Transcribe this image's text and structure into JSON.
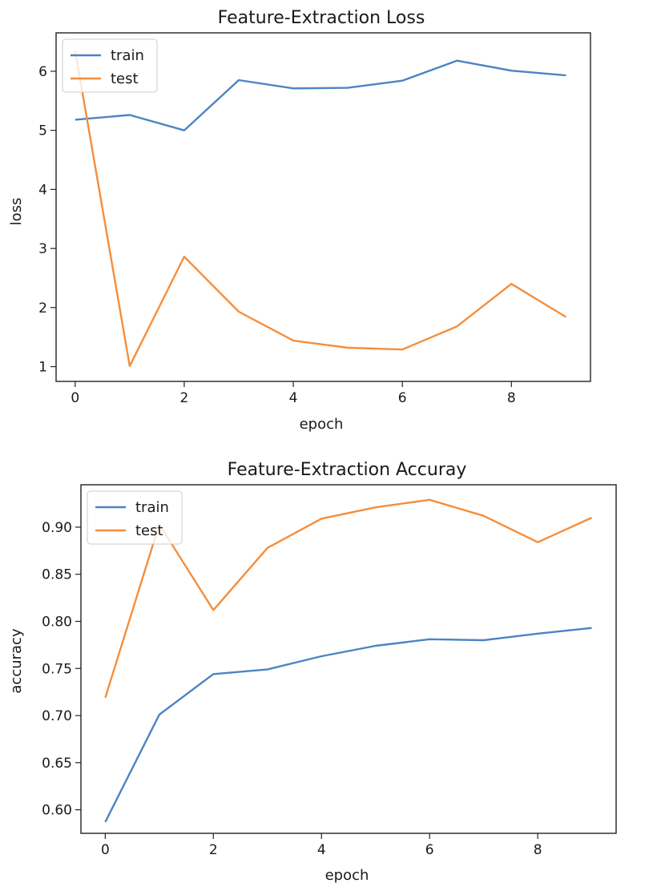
{
  "chart_data": [
    {
      "type": "line",
      "title": "Feature-Extraction Loss",
      "xlabel": "epoch",
      "ylabel": "loss",
      "x": [
        0,
        1,
        2,
        3,
        4,
        5,
        6,
        7,
        8,
        9
      ],
      "xlim": [
        -0.35,
        9.45
      ],
      "ylim": [
        0.75,
        6.65
      ],
      "xticks": [
        0,
        2,
        4,
        6,
        8
      ],
      "xtick_labels": [
        "0",
        "2",
        "4",
        "6",
        "8"
      ],
      "yticks": [
        1,
        2,
        3,
        4,
        5,
        6
      ],
      "ytick_labels": [
        "1",
        "2",
        "3",
        "4",
        "5",
        "6"
      ],
      "grid": false,
      "legend": "top-left",
      "series": [
        {
          "name": "train",
          "color": "#4c84c4",
          "values": [
            5.18,
            5.26,
            5.0,
            5.85,
            5.71,
            5.72,
            5.84,
            6.18,
            6.01,
            5.93
          ]
        },
        {
          "name": "test",
          "color": "#f58e3c",
          "values": [
            6.35,
            1.01,
            2.86,
            1.93,
            1.44,
            1.32,
            1.29,
            1.68,
            2.4,
            1.84
          ]
        }
      ]
    },
    {
      "type": "line",
      "title": "Feature-Extraction Accuray",
      "xlabel": "epoch",
      "ylabel": "accuracy",
      "x": [
        0,
        1,
        2,
        3,
        4,
        5,
        6,
        7,
        8,
        9
      ],
      "xlim": [
        -0.45,
        9.45
      ],
      "ylim": [
        0.575,
        0.945
      ],
      "xticks": [
        0,
        2,
        4,
        6,
        8
      ],
      "xtick_labels": [
        "0",
        "2",
        "4",
        "6",
        "8"
      ],
      "yticks": [
        0.6,
        0.65,
        0.7,
        0.75,
        0.8,
        0.85,
        0.9
      ],
      "ytick_labels": [
        "0.60",
        "0.65",
        "0.70",
        "0.75",
        "0.80",
        "0.85",
        "0.90"
      ],
      "grid": false,
      "legend": "top-left",
      "series": [
        {
          "name": "train",
          "color": "#4c84c4",
          "values": [
            0.587,
            0.701,
            0.744,
            0.749,
            0.763,
            0.774,
            0.781,
            0.78,
            0.787,
            0.793
          ]
        },
        {
          "name": "test",
          "color": "#f58e3c",
          "values": [
            0.719,
            0.903,
            0.812,
            0.878,
            0.909,
            0.921,
            0.929,
            0.912,
            0.884,
            0.91
          ]
        }
      ]
    }
  ]
}
